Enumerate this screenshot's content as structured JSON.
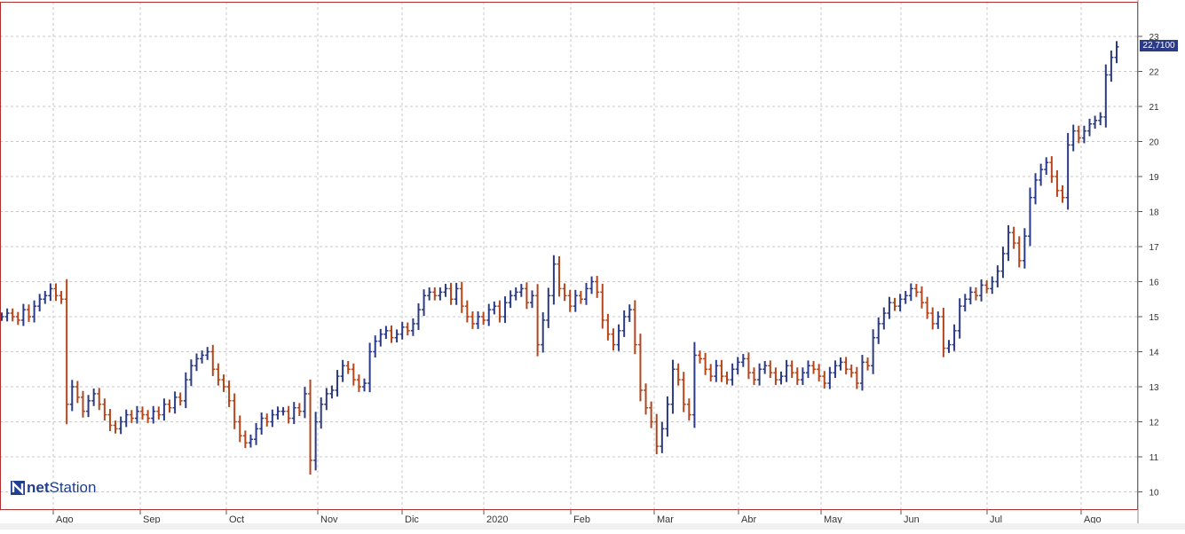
{
  "chart_data": {
    "type": "ohlc",
    "title": "",
    "xlabel": "",
    "ylabel": "",
    "ylim": [
      9.5,
      23.5
    ],
    "y_ticks": [
      "10",
      "11",
      "12",
      "13",
      "14",
      "15",
      "16",
      "17",
      "18",
      "19",
      "20",
      "21",
      "22",
      "23"
    ],
    "x_ticks": [
      "Ago",
      "Sep",
      "Oct",
      "Nov",
      "Dic",
      "2020",
      "Feb",
      "Mar",
      "Abr",
      "May",
      "Jun",
      "Jul",
      "Ago"
    ],
    "grid": true,
    "up_color": "#2b3a86",
    "down_color": "#b5451b",
    "last_price": "22,7100",
    "close_series": [
      15.0,
      15.1,
      15.0,
      14.9,
      15.2,
      15.0,
      15.3,
      15.5,
      15.6,
      15.8,
      15.6,
      15.5,
      12.5,
      13.0,
      12.7,
      12.3,
      12.6,
      12.8,
      12.5,
      12.2,
      11.9,
      11.8,
      12.0,
      12.2,
      12.1,
      12.3,
      12.2,
      12.1,
      12.3,
      12.2,
      12.5,
      12.4,
      12.7,
      12.6,
      13.2,
      13.6,
      13.8,
      13.9,
      14.0,
      13.5,
      13.2,
      13.0,
      12.6,
      12.0,
      11.6,
      11.4,
      11.5,
      11.8,
      12.1,
      12.0,
      12.2,
      12.3,
      12.3,
      12.1,
      12.4,
      12.3,
      12.8,
      10.9,
      12.0,
      12.5,
      12.8,
      12.9,
      13.3,
      13.6,
      13.5,
      13.2,
      13.0,
      13.1,
      14.0,
      14.3,
      14.5,
      14.6,
      14.4,
      14.5,
      14.7,
      14.6,
      14.8,
      15.2,
      15.6,
      15.7,
      15.6,
      15.7,
      15.8,
      15.5,
      15.8,
      15.3,
      15.0,
      14.8,
      15.0,
      14.9,
      15.2,
      15.3,
      15.0,
      15.4,
      15.6,
      15.7,
      15.8,
      15.4,
      15.6,
      14.2,
      14.9,
      15.6,
      16.5,
      15.8,
      15.6,
      15.3,
      15.6,
      15.5,
      15.8,
      16.0,
      15.7,
      14.9,
      14.5,
      14.2,
      14.6,
      15.0,
      15.2,
      14.2,
      12.9,
      12.4,
      12.0,
      11.3,
      11.8,
      12.5,
      13.5,
      13.2,
      12.5,
      12.2,
      13.9,
      13.8,
      13.5,
      13.3,
      13.6,
      13.3,
      13.2,
      13.5,
      13.7,
      13.8,
      13.4,
      13.2,
      13.5,
      13.6,
      13.4,
      13.2,
      13.3,
      13.6,
      13.4,
      13.2,
      13.4,
      13.6,
      13.5,
      13.3,
      13.1,
      13.4,
      13.6,
      13.7,
      13.5,
      13.4,
      13.1,
      13.7,
      13.6,
      14.4,
      14.8,
      15.1,
      15.4,
      15.3,
      15.5,
      15.6,
      15.8,
      15.7,
      15.4,
      15.1,
      14.8,
      15.0,
      14.1,
      14.2,
      14.6,
      15.3,
      15.5,
      15.7,
      15.6,
      15.9,
      15.8,
      16.0,
      16.3,
      16.8,
      17.4,
      17.1,
      16.6,
      17.3,
      18.4,
      18.9,
      19.2,
      19.4,
      19.0,
      18.6,
      18.4,
      19.9,
      20.3,
      20.1,
      20.3,
      20.5,
      20.6,
      20.7,
      21.9,
      22.4,
      22.7
    ]
  }
}
